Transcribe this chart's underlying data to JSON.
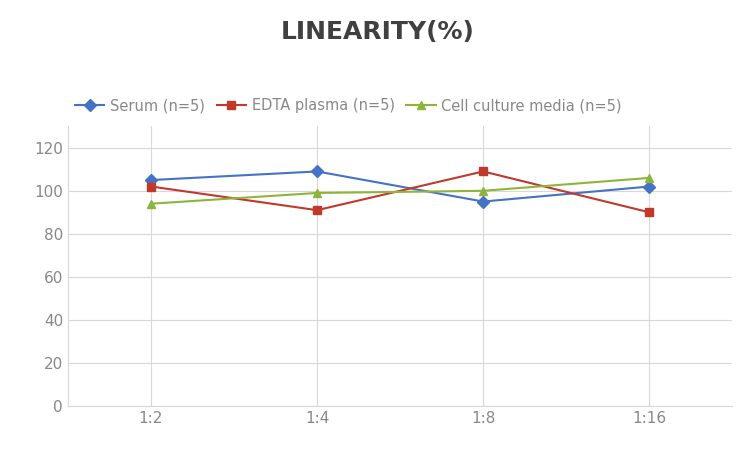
{
  "title": "LINEARITY(%)",
  "x_labels": [
    "1:2",
    "1:4",
    "1:8",
    "1:16"
  ],
  "x_positions": [
    0,
    1,
    2,
    3
  ],
  "series": [
    {
      "label": "Serum (n=5)",
      "values": [
        105,
        109,
        95,
        102
      ],
      "color": "#4472C4",
      "marker": "D",
      "markersize": 6
    },
    {
      "label": "EDTA plasma (n=5)",
      "values": [
        102,
        91,
        109,
        90
      ],
      "color": "#C0392B",
      "marker": "s",
      "markersize": 6
    },
    {
      "label": "Cell culture media (n=5)",
      "values": [
        94,
        99,
        100,
        106
      ],
      "color": "#8DB53C",
      "marker": "^",
      "markersize": 6
    }
  ],
  "ylim": [
    0,
    130
  ],
  "yticks": [
    0,
    20,
    40,
    60,
    80,
    100,
    120
  ],
  "background_color": "#ffffff",
  "grid_color": "#d8d8d8",
  "title_fontsize": 18,
  "title_color": "#404040",
  "legend_fontsize": 10.5,
  "axis_fontsize": 11,
  "axis_color": "#888888"
}
